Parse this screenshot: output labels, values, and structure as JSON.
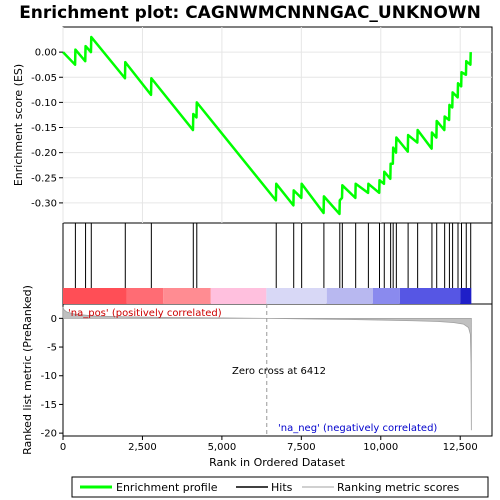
{
  "chart_data": {
    "type": "line",
    "title": "Enrichment plot: CAGNWMCNNNGAC_UNKNOWN",
    "xlabel": "Rank in Ordered Dataset",
    "ylabel_top": "Enrichment score (ES)",
    "ylabel_bottom": "Ranked list metric (PreRanked)",
    "xlim": [
      0,
      13500
    ],
    "x_ticks": [
      0,
      2500,
      5000,
      7500,
      10000,
      12500
    ],
    "x_tick_labels": [
      "0",
      "2,500",
      "5,000",
      "7,500",
      "10,000",
      "12,500"
    ],
    "es_ylim": [
      -0.34,
      0.05
    ],
    "es_ticks": [
      0.0,
      -0.05,
      -0.1,
      -0.15,
      -0.2,
      -0.25,
      -0.3
    ],
    "es_tick_labels": [
      "0.00",
      "-0.05",
      "-0.10",
      "-0.15",
      "-0.20",
      "-0.25",
      "-0.30"
    ],
    "metric_ylim": [
      -20.5,
      2.5
    ],
    "metric_ticks": [
      0,
      -5,
      -10,
      -15,
      -20
    ],
    "metric_tick_labels": [
      "0",
      "-5",
      "-10",
      "-15",
      "-20"
    ],
    "series": [
      {
        "name": "Enrichment profile",
        "color": "#00ff00",
        "x": [
          0,
          380,
          390,
          700,
          710,
          880,
          890,
          1950,
          1960,
          2770,
          2780,
          4090,
          4100,
          4200,
          4210,
          6700,
          6710,
          7250,
          7260,
          7500,
          7510,
          8200,
          8210,
          8700,
          8710,
          8780,
          8790,
          9200,
          9210,
          9600,
          9610,
          9950,
          9960,
          10100,
          10110,
          10300,
          10310,
          10380,
          10390,
          10480,
          10490,
          10850,
          10860,
          11150,
          11160,
          11600,
          11610,
          11750,
          11760,
          12000,
          12010,
          12150,
          12160,
          12250,
          12260,
          12420,
          12430,
          12530,
          12540,
          12680,
          12690,
          12820,
          12830
        ],
        "y": [
          0.0,
          -0.025,
          0.005,
          -0.018,
          0.012,
          0.0,
          0.03,
          -0.052,
          -0.02,
          -0.085,
          -0.052,
          -0.155,
          -0.123,
          -0.13,
          -0.1,
          -0.295,
          -0.262,
          -0.305,
          -0.275,
          -0.29,
          -0.262,
          -0.32,
          -0.287,
          -0.322,
          -0.295,
          -0.29,
          -0.265,
          -0.29,
          -0.262,
          -0.28,
          -0.262,
          -0.28,
          -0.255,
          -0.262,
          -0.238,
          -0.252,
          -0.222,
          -0.222,
          -0.19,
          -0.2,
          -0.17,
          -0.198,
          -0.165,
          -0.18,
          -0.155,
          -0.192,
          -0.16,
          -0.17,
          -0.137,
          -0.155,
          -0.128,
          -0.135,
          -0.105,
          -0.11,
          -0.08,
          -0.09,
          -0.062,
          -0.068,
          -0.04,
          -0.045,
          -0.018,
          -0.025,
          0.0
        ]
      },
      {
        "name": "Hits",
        "color": "#000000",
        "x": [
          390,
          710,
          890,
          1960,
          2780,
          4100,
          4210,
          6710,
          7260,
          7510,
          8210,
          8710,
          8790,
          9210,
          9610,
          9960,
          10110,
          10310,
          10390,
          10490,
          10860,
          11160,
          11610,
          11760,
          12010,
          12160,
          12260,
          12430,
          12540,
          12690,
          12830
        ]
      },
      {
        "name": "Ranking metric scores",
        "color": "#c0c0c0",
        "x": [
          0,
          30,
          120,
          400,
          1000,
          2000,
          3500,
          5000,
          6000,
          6412,
          7000,
          8000,
          9000,
          10000,
          11000,
          11800,
          12300,
          12600,
          12760,
          12820,
          12840,
          12850
        ],
        "y": [
          2.0,
          1.5,
          1.1,
          0.7,
          0.4,
          0.25,
          0.15,
          0.07,
          0.02,
          0.0,
          -0.05,
          -0.12,
          -0.2,
          -0.3,
          -0.42,
          -0.55,
          -0.75,
          -1.0,
          -1.6,
          -2.8,
          -8.0,
          -19.5
        ]
      }
    ],
    "n_genes": 12850,
    "zero_cross": 6412,
    "annotations": {
      "zero_cross_label": "Zero cross at 6412",
      "pos_label": "'na_pos' (positively correlated)",
      "neg_label": "'na_neg' (negatively correlated)",
      "pos_color": "#cc0000",
      "neg_color": "#0000cc"
    },
    "heat_bar": {
      "segments": [
        {
          "x0": 0,
          "x1": 2000,
          "color": "#ff4e56"
        },
        {
          "x0": 2000,
          "x1": 3150,
          "color": "#ff6c74"
        },
        {
          "x0": 3150,
          "x1": 4650,
          "color": "#ff8c92"
        },
        {
          "x0": 4650,
          "x1": 6400,
          "color": "#ffc0de"
        },
        {
          "x0": 6400,
          "x1": 8300,
          "color": "#d8d8f6"
        },
        {
          "x0": 8300,
          "x1": 9750,
          "color": "#b8b8f0"
        },
        {
          "x0": 9750,
          "x1": 10600,
          "color": "#8a8aee"
        },
        {
          "x0": 10600,
          "x1": 12500,
          "color": "#5656e4"
        },
        {
          "x0": 12500,
          "x1": 12850,
          "color": "#1f1fc8"
        }
      ]
    },
    "legend": {
      "placement": "bottom",
      "entries": [
        "Enrichment profile",
        "Hits",
        "Ranking metric scores"
      ]
    }
  }
}
